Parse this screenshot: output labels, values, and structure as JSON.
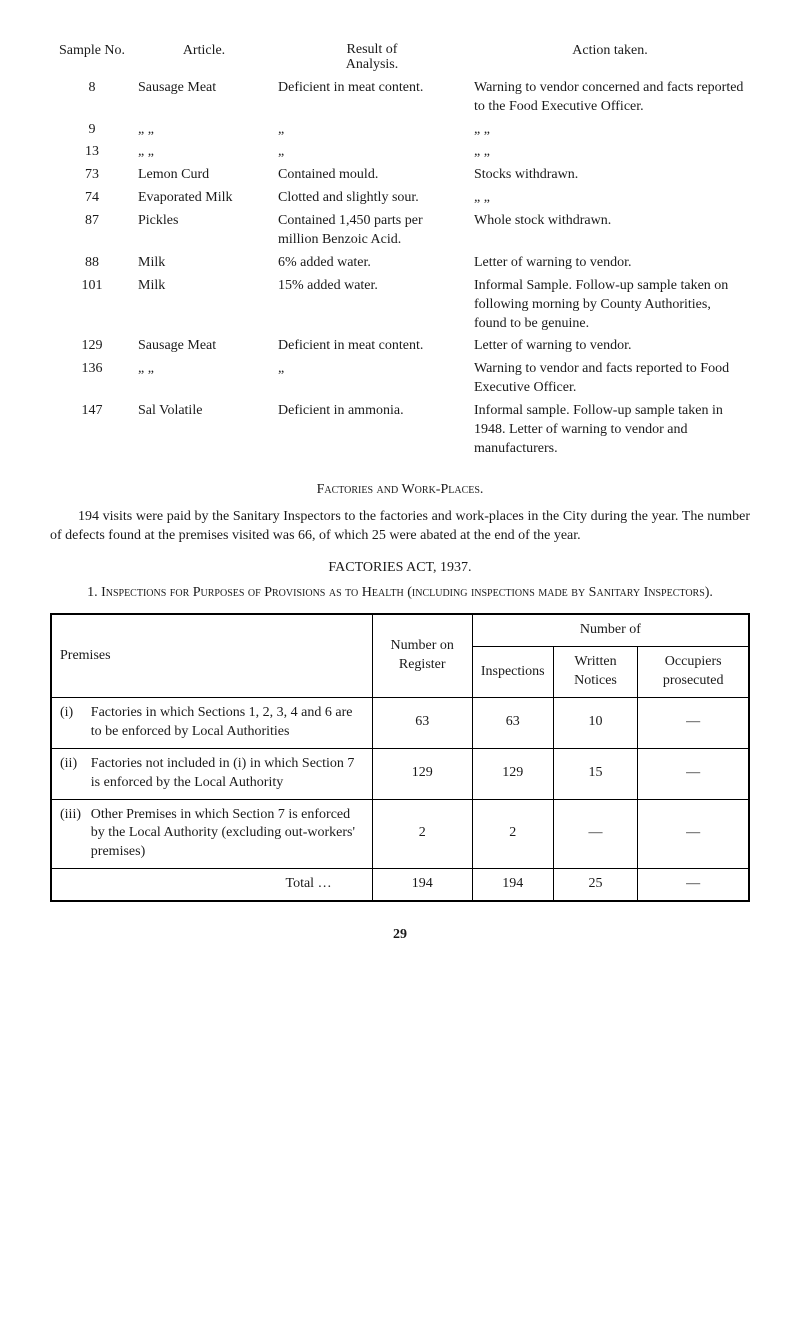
{
  "samples_header": {
    "sample_no": "Sample No.",
    "article": "Article.",
    "result_top": "Result of",
    "result_bottom": "Analysis.",
    "action": "Action taken."
  },
  "samples": [
    {
      "no": "8",
      "article": "Sausage Meat",
      "result": "Deficient in meat content.",
      "action": "Warning to vendor concerned and facts reported to the Food Executive Officer."
    },
    {
      "no": "9",
      "article": "„     „",
      "result": "„",
      "action": "„           „"
    },
    {
      "no": "13",
      "article": "„     „",
      "result": "„",
      "action": "„           „"
    },
    {
      "no": "73",
      "article": "Lemon Curd",
      "result": "Contained mould.",
      "action": "Stocks withdrawn."
    },
    {
      "no": "74",
      "article": "Evaporated Milk",
      "result": "Clotted and slightly sour.",
      "action": "„           „"
    },
    {
      "no": "87",
      "article": "Pickles",
      "result": "Contained 1,450 parts per million Benzoic Acid.",
      "action": "Whole stock withdrawn."
    },
    {
      "no": "88",
      "article": "Milk",
      "result": "6% added water.",
      "action": "Letter of warning to vendor."
    },
    {
      "no": "101",
      "article": "Milk",
      "result": "15% added water.",
      "action": "Informal Sample. Follow-up sample taken on following morning by County Authorities, found to be genuine."
    },
    {
      "no": "129",
      "article": "Sausage Meat",
      "result": "Deficient in meat content.",
      "action": "Letter of warning to vendor."
    },
    {
      "no": "136",
      "article": "„     „",
      "result": "„",
      "action": "Warning to vendor and facts reported to Food Executive Officer."
    },
    {
      "no": "147",
      "article": "Sal Volatile",
      "result": "Deficient in ammonia.",
      "action": "Informal sample. Follow-up sample taken in 1948. Letter of warning to vendor and manufacturers."
    }
  ],
  "factories_heading": "Factories and Work-Places.",
  "factories_para": "194 visits were paid by the Sanitary Inspectors to the factories and work-places in the City during the year. The number of defects found at the premises visited was 66, of which 25 were abated at the end of the year.",
  "act_title": "FACTORIES ACT, 1937.",
  "insp_title": "1.  Inspections for Purposes of Provisions as to Health (including inspections made by Sanitary Inspectors).",
  "insp_header": {
    "premises": "Premises",
    "number_on_register": "Number on Register",
    "number_of": "Number of",
    "inspections": "Inspections",
    "written_notices": "Written Notices",
    "occupiers_prosecuted": "Occupiers prosecuted"
  },
  "insp_rows": [
    {
      "roman": "(i)",
      "premises": "Factories in which Sections 1, 2, 3, 4 and 6 are to be enforced by Local Authorities",
      "register": "63",
      "inspections": "63",
      "notices": "10",
      "prosecuted": "—"
    },
    {
      "roman": "(ii)",
      "premises": "Factories not included in (i) in which Section 7 is enforced by the Local Authority",
      "register": "129",
      "inspections": "129",
      "notices": "15",
      "prosecuted": "—"
    },
    {
      "roman": "(iii)",
      "premises": "Other Premises in which Section 7 is enforced by the Local Authority (excluding out-workers' premises)",
      "register": "2",
      "inspections": "2",
      "notices": "—",
      "prosecuted": "—"
    }
  ],
  "insp_total": {
    "label": "Total    …",
    "register": "194",
    "inspections": "194",
    "notices": "25",
    "prosecuted": "—"
  },
  "page_number": "29"
}
